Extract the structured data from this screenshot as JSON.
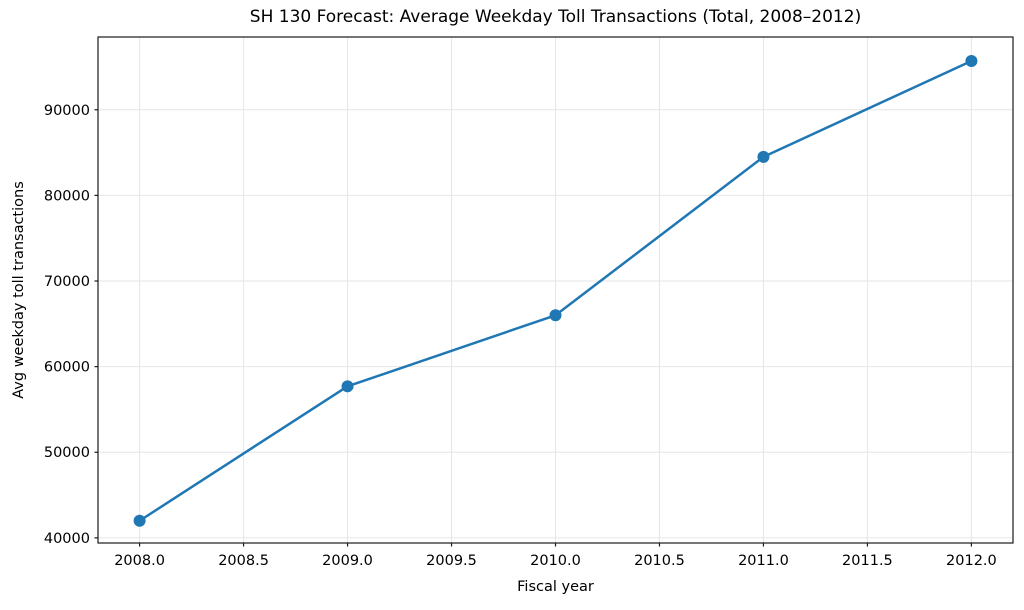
{
  "chart_data": {
    "type": "line",
    "title": "SH 130 Forecast: Average Weekday Toll Transactions (Total, 2008–2012)",
    "xlabel": "Fiscal year",
    "ylabel": "Avg weekday toll transactions",
    "x": [
      2008,
      2009,
      2010,
      2011,
      2012
    ],
    "values": [
      42000,
      57700,
      66000,
      84500,
      95700
    ],
    "xlim": [
      2007.8,
      2012.2
    ],
    "ylim": [
      39400,
      98500
    ],
    "xticks": {
      "values": [
        2008.0,
        2008.5,
        2009.0,
        2009.5,
        2010.0,
        2010.5,
        2011.0,
        2011.5,
        2012.0
      ],
      "labels": [
        "2008.0",
        "2008.5",
        "2009.0",
        "2009.5",
        "2010.0",
        "2010.5",
        "2011.0",
        "2011.5",
        "2012.0"
      ]
    },
    "yticks": {
      "values": [
        40000,
        50000,
        60000,
        70000,
        80000,
        90000
      ],
      "labels": [
        "40000",
        "50000",
        "60000",
        "70000",
        "80000",
        "90000"
      ]
    },
    "grid": true,
    "legend": "none",
    "line_color": "#1f77b4",
    "marker": "circle",
    "grid_color": "#e6e6e6",
    "axis_color": "#1a1a1a",
    "text_color": "#000000"
  }
}
